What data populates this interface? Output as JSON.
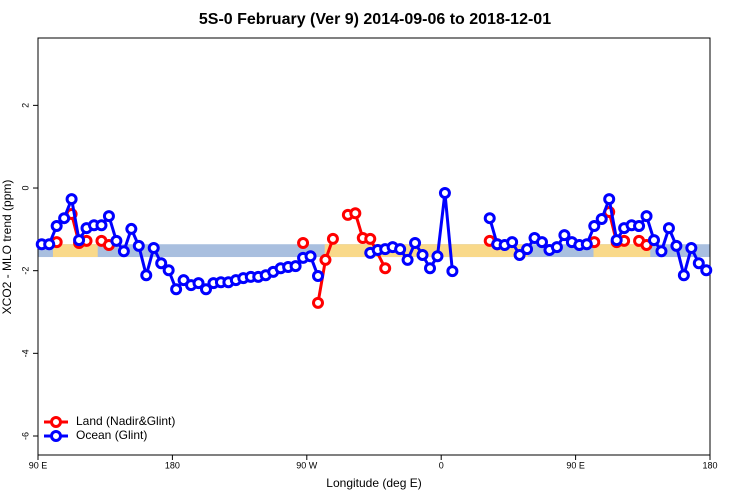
{
  "chart_data": {
    "type": "line",
    "title": "5S-0 February (Ver 9)   2014-09-06 to 2018-12-01",
    "x_label": "Longitude (deg E)",
    "y_label": "XCO2 - MLO trend (ppm)",
    "xlim": [
      90,
      540
    ],
    "ylim": [
      -6.46,
      3.63
    ],
    "xticks": [
      {
        "value": 90,
        "label": "90 E"
      },
      {
        "value": 180,
        "label": "180"
      },
      {
        "value": 270,
        "label": "90 W"
      },
      {
        "value": 360,
        "label": "0"
      },
      {
        "value": 450,
        "label": "90 E"
      },
      {
        "value": 540,
        "label": "180"
      }
    ],
    "yticks": [
      -6,
      -4,
      -2,
      0,
      2
    ],
    "legend": "bottom-left",
    "reference_band": {
      "lower": -1.67,
      "upper": -1.36,
      "color": "#a9bfdf",
      "land_color": "#f9d98a",
      "land_ranges": [
        [
          100,
          130
        ],
        [
          282,
          418
        ],
        [
          462,
          500
        ]
      ]
    },
    "series": [
      {
        "name": "Land (Nadir&Glint)",
        "color": "#ff0000",
        "x": [
          102.5,
          null,
          112.5,
          117.5,
          null,
          122.5,
          null,
          132.5,
          137.5,
          null,
          267.5,
          null,
          277.5,
          282.5,
          287.5,
          null,
          297.5,
          302.5,
          307.5,
          312.5,
          322.5,
          null,
          392.5,
          397.5,
          null,
          462.5,
          null,
          472.5,
          477.5,
          null,
          482.5,
          null,
          492.5,
          497.5
        ],
        "values": [
          -1.31,
          null,
          -0.63,
          -1.33,
          null,
          -1.28,
          null,
          -1.28,
          -1.38,
          null,
          -1.33,
          null,
          -2.78,
          -1.74,
          -1.23,
          null,
          -0.65,
          -0.61,
          -1.21,
          -1.23,
          -1.94,
          null,
          -1.28,
          -1.36,
          null,
          -1.31,
          null,
          -0.58,
          -1.31,
          null,
          -1.28,
          null,
          -1.28,
          -1.38
        ]
      },
      {
        "name": "Ocean (Glint)",
        "color": "#0000ff",
        "x": [
          92.5,
          97.5,
          102.5,
          107.5,
          112.5,
          117.5,
          122.5,
          127.5,
          132.5,
          137.5,
          142.5,
          147.5,
          152.5,
          157.5,
          162.5,
          167.5,
          172.5,
          177.5,
          182.5,
          187.5,
          192.5,
          197.5,
          202.5,
          207.5,
          212.5,
          217.5,
          222.5,
          227.5,
          232.5,
          237.5,
          242.5,
          247.5,
          252.5,
          257.5,
          262.5,
          267.5,
          272.5,
          277.5,
          null,
          312.5,
          317.5,
          322.5,
          327.5,
          332.5,
          337.5,
          342.5,
          347.5,
          352.5,
          357.5,
          362.5,
          367.5,
          null,
          392.5,
          397.5,
          402.5,
          407.5,
          412.5,
          417.5,
          422.5,
          427.5,
          432.5,
          437.5,
          442.5,
          447.5,
          452.5,
          457.5,
          462.5,
          467.5,
          472.5,
          477.5,
          482.5,
          487.5,
          492.5,
          497.5,
          502.5,
          507.5,
          512.5,
          517.5,
          522.5,
          527.5,
          532.5,
          537.5
        ],
        "values": [
          -1.36,
          -1.36,
          -0.92,
          -0.73,
          -0.27,
          -1.26,
          -0.97,
          -0.9,
          -0.9,
          -0.68,
          -1.28,
          -1.53,
          -0.99,
          -1.4,
          -2.11,
          -1.45,
          -1.82,
          -1.99,
          -2.45,
          -2.23,
          -2.35,
          -2.3,
          -2.45,
          -2.3,
          -2.28,
          -2.28,
          -2.23,
          -2.18,
          -2.15,
          -2.15,
          -2.11,
          -2.03,
          -1.94,
          -1.91,
          -1.89,
          -1.69,
          -1.65,
          -2.13,
          null,
          -1.57,
          -1.5,
          -1.48,
          -1.43,
          -1.48,
          -1.74,
          -1.33,
          -1.62,
          -1.94,
          -1.65,
          -0.12,
          -2.01,
          null,
          -0.73,
          -1.36,
          -1.38,
          -1.31,
          -1.62,
          -1.48,
          -1.21,
          -1.31,
          -1.5,
          -1.43,
          -1.14,
          -1.31,
          -1.38,
          -1.36,
          -0.92,
          -0.75,
          -0.27,
          -1.26,
          -0.97,
          -0.9,
          -0.92,
          -0.68,
          -1.26,
          -1.53,
          -0.97,
          -1.4,
          -2.11,
          -1.45,
          -1.82,
          -1.99
        ]
      }
    ]
  }
}
